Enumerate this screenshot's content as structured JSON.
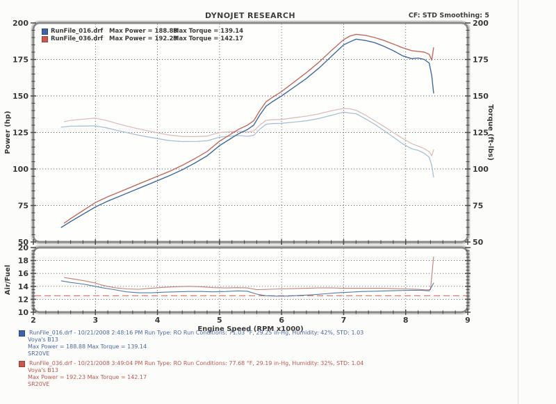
{
  "header": {
    "title": "DYNOJET RESEARCH",
    "cf_smoothing": "CF: STD  Smoothing: 5"
  },
  "legend": {
    "rows": [
      {
        "file": "RunFile_016.drf",
        "max_power": "Max Power = 188.88",
        "max_torque": "Max Torque = 139.14",
        "swatch_fill": "#3f62a7",
        "swatch_border": "#2a4a86"
      },
      {
        "file": "RunFile_036.drf",
        "max_power": "Max Power = 192.23",
        "max_torque": "Max Torque = 142.17",
        "swatch_fill": "#c4574e",
        "swatch_border": "#9c3f38"
      }
    ]
  },
  "colors": {
    "power_blue": "#41699f",
    "power_red": "#c4685f",
    "torque_blue": "#a7c0d8",
    "torque_red": "#dfbcbe",
    "afr_blue": "#5379ab",
    "afr_red": "#c97c72",
    "afr_target_dash": "#e0857b",
    "grid": "#4a4a4a",
    "frame": "#8a8a8a",
    "tick": "#4a4a4a",
    "label_text": "#383838"
  },
  "chart_data": [
    {
      "type": "line",
      "title": "",
      "xlabel": "",
      "ylabel_left": "Power (hp)",
      "ylabel_right": "Torque (ft-lbs)",
      "xlim": [
        2,
        9
      ],
      "ylim": [
        50,
        200
      ],
      "x_major": 1,
      "x_minor": 0.2,
      "y_major": 25,
      "y_minor": 5,
      "grid": true,
      "show_x_labels": false,
      "legend_position": "top-left-inside",
      "series": [
        {
          "name": "RunFile_016 Torque (ft-lbs)",
          "colorkey": "torque_blue",
          "width": 1.3,
          "points": [
            [
              2.45,
              128.6
            ],
            [
              2.6,
              129.3
            ],
            [
              2.8,
              129.4
            ],
            [
              3.0,
              129.5
            ],
            [
              3.2,
              128.0
            ],
            [
              3.4,
              125.9
            ],
            [
              3.6,
              124.0
            ],
            [
              3.8,
              122.3
            ],
            [
              4.0,
              120.8
            ],
            [
              4.2,
              119.4
            ],
            [
              4.4,
              118.8
            ],
            [
              4.6,
              118.8
            ],
            [
              4.8,
              119.3
            ],
            [
              5.0,
              121.8
            ],
            [
              5.15,
              122.4
            ],
            [
              5.3,
              122.9
            ],
            [
              5.45,
              122.4
            ],
            [
              5.55,
              123.0
            ],
            [
              5.65,
              127.3
            ],
            [
              5.75,
              130.6
            ],
            [
              5.85,
              131.1
            ],
            [
              6.0,
              131.3
            ],
            [
              6.2,
              132.1
            ],
            [
              6.4,
              133.0
            ],
            [
              6.6,
              134.5
            ],
            [
              6.8,
              136.7
            ],
            [
              7.0,
              138.9
            ],
            [
              7.1,
              138.3
            ],
            [
              7.2,
              137.8
            ],
            [
              7.35,
              134.4
            ],
            [
              7.5,
              130.6
            ],
            [
              7.65,
              126.3
            ],
            [
              7.8,
              121.9
            ],
            [
              7.95,
              117.2
            ],
            [
              8.1,
              113.8
            ],
            [
              8.2,
              112.7
            ],
            [
              8.3,
              110.7
            ],
            [
              8.38,
              108.1
            ],
            [
              8.42,
              102.5
            ],
            [
              8.45,
              94.5
            ]
          ]
        },
        {
          "name": "RunFile_036 Torque (ft-lbs)",
          "colorkey": "torque_red",
          "width": 1.3,
          "points": [
            [
              2.5,
              132.4
            ],
            [
              2.6,
              133.3
            ],
            [
              2.8,
              134.1
            ],
            [
              3.0,
              134.8
            ],
            [
              3.2,
              133.0
            ],
            [
              3.4,
              130.5
            ],
            [
              3.6,
              128.4
            ],
            [
              3.8,
              126.5
            ],
            [
              4.0,
              124.7
            ],
            [
              4.2,
              123.2
            ],
            [
              4.4,
              122.3
            ],
            [
              4.6,
              122.2
            ],
            [
              4.8,
              122.5
            ],
            [
              5.0,
              125.0
            ],
            [
              5.15,
              125.4
            ],
            [
              5.3,
              125.8
            ],
            [
              5.45,
              125.3
            ],
            [
              5.55,
              125.9
            ],
            [
              5.65,
              130.1
            ],
            [
              5.75,
              133.3
            ],
            [
              5.85,
              133.7
            ],
            [
              6.0,
              133.9
            ],
            [
              6.2,
              135.1
            ],
            [
              6.4,
              136.2
            ],
            [
              6.6,
              137.7
            ],
            [
              6.8,
              139.8
            ],
            [
              7.0,
              141.5
            ],
            [
              7.1,
              141.2
            ],
            [
              7.2,
              140.2
            ],
            [
              7.35,
              136.9
            ],
            [
              7.5,
              133.0
            ],
            [
              7.65,
              129.1
            ],
            [
              7.8,
              124.9
            ],
            [
              7.95,
              120.9
            ],
            [
              8.1,
              117.3
            ],
            [
              8.2,
              115.7
            ],
            [
              8.3,
              113.9
            ],
            [
              8.38,
              111.8
            ],
            [
              8.42,
              109.1
            ],
            [
              8.45,
              113.1
            ]
          ]
        },
        {
          "name": "RunFile_016 Power (hp)",
          "colorkey": "power_blue",
          "width": 1.4,
          "points": [
            [
              2.45,
              60
            ],
            [
              2.6,
              64
            ],
            [
              2.8,
              69
            ],
            [
              3.0,
              74
            ],
            [
              3.2,
              78
            ],
            [
              3.4,
              81.5
            ],
            [
              3.6,
              85
            ],
            [
              3.8,
              88.5
            ],
            [
              4.0,
              92
            ],
            [
              4.2,
              95.5
            ],
            [
              4.4,
              99.5
            ],
            [
              4.6,
              104
            ],
            [
              4.8,
              109
            ],
            [
              5.0,
              116
            ],
            [
              5.15,
              120
            ],
            [
              5.3,
              124
            ],
            [
              5.45,
              127
            ],
            [
              5.55,
              130
            ],
            [
              5.65,
              137
            ],
            [
              5.75,
              143
            ],
            [
              5.85,
              146
            ],
            [
              6.0,
              150
            ],
            [
              6.2,
              156
            ],
            [
              6.4,
              162
            ],
            [
              6.6,
              169
            ],
            [
              6.8,
              177
            ],
            [
              7.0,
              185
            ],
            [
              7.1,
              187
            ],
            [
              7.2,
              188.9
            ],
            [
              7.35,
              188
            ],
            [
              7.5,
              186.5
            ],
            [
              7.65,
              184
            ],
            [
              7.8,
              181
            ],
            [
              7.95,
              177.5
            ],
            [
              8.1,
              175.5
            ],
            [
              8.2,
              176
            ],
            [
              8.3,
              175
            ],
            [
              8.38,
              172.5
            ],
            [
              8.42,
              164
            ],
            [
              8.45,
              152
            ]
          ]
        },
        {
          "name": "RunFile_036 Power (hp)",
          "colorkey": "power_red",
          "width": 1.4,
          "points": [
            [
              2.5,
              63
            ],
            [
              2.6,
              66
            ],
            [
              2.8,
              71.5
            ],
            [
              3.0,
              77
            ],
            [
              3.2,
              81
            ],
            [
              3.4,
              84.5
            ],
            [
              3.6,
              88
            ],
            [
              3.8,
              91.5
            ],
            [
              4.0,
              95
            ],
            [
              4.2,
              98.5
            ],
            [
              4.4,
              102.5
            ],
            [
              4.6,
              107
            ],
            [
              4.8,
              112
            ],
            [
              5.0,
              119
            ],
            [
              5.15,
              123
            ],
            [
              5.3,
              127
            ],
            [
              5.45,
              130
            ],
            [
              5.55,
              133
            ],
            [
              5.65,
              140
            ],
            [
              5.75,
              146
            ],
            [
              5.85,
              149
            ],
            [
              6.0,
              153
            ],
            [
              6.2,
              159.5
            ],
            [
              6.4,
              166
            ],
            [
              6.6,
              173
            ],
            [
              6.8,
              181
            ],
            [
              7.0,
              188.5
            ],
            [
              7.1,
              191
            ],
            [
              7.2,
              192.2
            ],
            [
              7.35,
              191.5
            ],
            [
              7.5,
              190
            ],
            [
              7.65,
              188
            ],
            [
              7.8,
              185.5
            ],
            [
              7.95,
              183
            ],
            [
              8.1,
              181
            ],
            [
              8.2,
              180.5
            ],
            [
              8.3,
              180
            ],
            [
              8.38,
              178.5
            ],
            [
              8.42,
              174.5
            ],
            [
              8.45,
              183
            ]
          ]
        }
      ]
    },
    {
      "type": "line",
      "title": "",
      "xlabel": "Engine Speed (RPM x1000)",
      "ylabel_left": "Air/Fuel",
      "ylabel_right": "",
      "xlim": [
        2,
        9
      ],
      "ylim": [
        10,
        20
      ],
      "x_major": 1,
      "x_minor": 0.2,
      "y_major": 2,
      "y_minor": 0.5,
      "grid": true,
      "show_x_labels": true,
      "reference_line": {
        "value": 12.55,
        "colorkey": "afr_target_dash",
        "style": "dashed"
      },
      "series": [
        {
          "name": "RunFile_036 Air/Fuel",
          "colorkey": "afr_red",
          "width": 1.1,
          "points": [
            [
              2.5,
              15.35
            ],
            [
              2.6,
              15.2
            ],
            [
              2.8,
              14.9
            ],
            [
              3.0,
              14.5
            ],
            [
              3.1,
              14.2
            ],
            [
              3.3,
              13.8
            ],
            [
              3.5,
              13.6
            ],
            [
              3.7,
              13.55
            ],
            [
              3.9,
              13.7
            ],
            [
              4.1,
              13.85
            ],
            [
              4.3,
              13.95
            ],
            [
              4.5,
              14.0
            ],
            [
              4.7,
              13.95
            ],
            [
              4.9,
              13.8
            ],
            [
              5.1,
              13.75
            ],
            [
              5.3,
              13.8
            ],
            [
              5.45,
              13.75
            ],
            [
              5.6,
              13.5
            ],
            [
              5.8,
              13.55
            ],
            [
              6.0,
              13.6
            ],
            [
              6.2,
              13.65
            ],
            [
              6.4,
              13.7
            ],
            [
              6.6,
              13.75
            ],
            [
              6.8,
              13.75
            ],
            [
              7.0,
              13.7
            ],
            [
              7.2,
              13.7
            ],
            [
              7.4,
              13.7
            ],
            [
              7.6,
              13.7
            ],
            [
              7.8,
              13.65
            ],
            [
              8.0,
              13.6
            ],
            [
              8.2,
              13.55
            ],
            [
              8.33,
              13.45
            ],
            [
              8.4,
              13.5
            ],
            [
              8.45,
              18.55
            ]
          ]
        },
        {
          "name": "RunFile_016 Air/Fuel",
          "colorkey": "afr_blue",
          "width": 1.1,
          "points": [
            [
              2.45,
              14.85
            ],
            [
              2.6,
              14.6
            ],
            [
              2.8,
              14.35
            ],
            [
              3.0,
              14.0
            ],
            [
              3.1,
              13.8
            ],
            [
              3.3,
              13.5
            ],
            [
              3.5,
              13.15
            ],
            [
              3.7,
              13.0
            ],
            [
              3.9,
              13.0
            ],
            [
              4.1,
              13.1
            ],
            [
              4.3,
              13.15
            ],
            [
              4.5,
              13.2
            ],
            [
              4.7,
              13.2
            ],
            [
              4.9,
              13.15
            ],
            [
              5.1,
              13.2
            ],
            [
              5.3,
              13.3
            ],
            [
              5.45,
              13.25
            ],
            [
              5.6,
              12.8
            ],
            [
              5.75,
              12.55
            ],
            [
              5.9,
              12.5
            ],
            [
              6.1,
              12.5
            ],
            [
              6.3,
              12.6
            ],
            [
              6.5,
              12.7
            ],
            [
              6.7,
              12.85
            ],
            [
              6.9,
              13.0
            ],
            [
              7.1,
              13.1
            ],
            [
              7.3,
              13.2
            ],
            [
              7.5,
              13.25
            ],
            [
              7.7,
              13.3
            ],
            [
              7.9,
              13.35
            ],
            [
              8.1,
              13.4
            ],
            [
              8.25,
              13.4
            ],
            [
              8.38,
              13.3
            ],
            [
              8.45,
              14.5
            ]
          ]
        }
      ]
    }
  ],
  "footer": {
    "runs": [
      {
        "line1": "RunFile_016.drf - 10/21/2008 2:48:16 PM  Run Type: RO  Run Conditions: 71.03 °F, 29.25 in-Hg,  Humidity:  42%, STD: 1.03",
        "line2": "Voya's B13",
        "line3": "Max Power = 188.88  Max Torque = 139.14",
        "line4": "SR20VE",
        "text_color": "#4a69a5",
        "swatch_fill": "#3f62a7",
        "swatch_border": "#2a4a86"
      },
      {
        "line1": "RunFile_036.drf - 10/21/2008 3:49:04 PM  Run Type: RO  Run Conditions: 77.68 °F, 29.19 in-Hg,  Humidity:  32%, STD: 1.04",
        "line2": "Voya's B13",
        "line3": "Max Power = 192.23  Max Torque = 142.17",
        "line4": "SR20VE",
        "text_color": "#c2574e",
        "swatch_fill": "#c4574e",
        "swatch_border": "#9c3f38"
      }
    ]
  }
}
